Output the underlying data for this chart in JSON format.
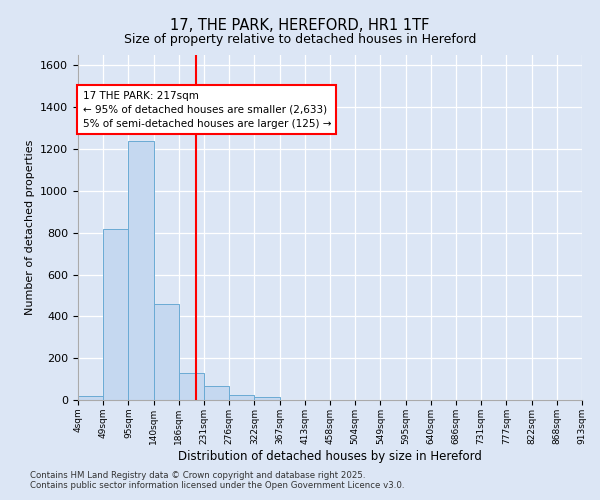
{
  "title1": "17, THE PARK, HEREFORD, HR1 1TF",
  "title2": "Size of property relative to detached houses in Hereford",
  "xlabel": "Distribution of detached houses by size in Hereford",
  "ylabel": "Number of detached properties",
  "bin_labels": [
    "4sqm",
    "49sqm",
    "95sqm",
    "140sqm",
    "186sqm",
    "231sqm",
    "276sqm",
    "322sqm",
    "367sqm",
    "413sqm",
    "458sqm",
    "504sqm",
    "549sqm",
    "595sqm",
    "640sqm",
    "686sqm",
    "731sqm",
    "777sqm",
    "822sqm",
    "868sqm",
    "913sqm"
  ],
  "bar_heights": [
    20,
    820,
    1240,
    460,
    130,
    65,
    25,
    12,
    0,
    0,
    0,
    0,
    0,
    0,
    0,
    0,
    0,
    0,
    0,
    0
  ],
  "bar_color": "#c5d8f0",
  "bar_edge_color": "#6aaad4",
  "vline_color": "red",
  "annotation_text": "17 THE PARK: 217sqm\n← 95% of detached houses are smaller (2,633)\n5% of semi-detached houses are larger (125) →",
  "annotation_box_color": "white",
  "annotation_box_edge": "red",
  "ylim": [
    0,
    1650
  ],
  "yticks": [
    0,
    200,
    400,
    600,
    800,
    1000,
    1200,
    1400,
    1600
  ],
  "footer": "Contains HM Land Registry data © Crown copyright and database right 2025.\nContains public sector information licensed under the Open Government Licence v3.0.",
  "bg_color": "#dce6f5",
  "plot_bg_color": "#dce6f5"
}
